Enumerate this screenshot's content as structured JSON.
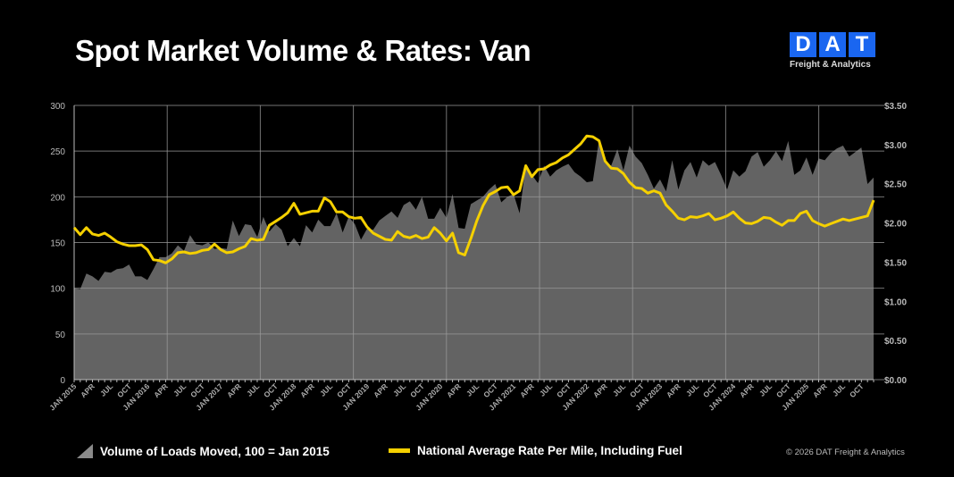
{
  "chart_data": {
    "type": "area+line",
    "title": "Spot Market Volume & Rates: Van",
    "x_labels": [
      "JAN 2015",
      "APR",
      "JUL",
      "OCT",
      "JAN 2016",
      "APR",
      "JUL",
      "OCT",
      "JAN 2017",
      "APR",
      "JUL",
      "OCT",
      "JAN 2018",
      "APR",
      "JUL",
      "OCT",
      "JAN 2019",
      "APR",
      "JUL",
      "OCT",
      "JAN 2020",
      "APR",
      "JUL",
      "OCT",
      "JAN 2021",
      "APR",
      "JUL",
      "OCT",
      "JAN 2022",
      "APR",
      "JUL",
      "OCT",
      "JAN 2023",
      "APR",
      "JUL",
      "OCT",
      "JAN 2024",
      "APR",
      "JUL",
      "OCT",
      "JAN 2025",
      "APR",
      "JUL",
      "OCT"
    ],
    "x_range": [
      "Jan 2015",
      "Dec 2025"
    ],
    "x_frequency": "monthly",
    "y_left": {
      "ylim": [
        0,
        300
      ],
      "ticks": [
        "0",
        "50",
        "100",
        "150",
        "200",
        "250",
        "300"
      ]
    },
    "y_right": {
      "ylim": [
        0,
        3.5
      ],
      "ticks": [
        "$0.00",
        "$0.50",
        "$1.00",
        "$1.50",
        "$2.00",
        "$2.50",
        "$3.00",
        "$3.50"
      ]
    },
    "grid": true,
    "legend_placement": "bottom",
    "series": [
      {
        "name": "Volume of Loads Moved, 100 = Jan 2015",
        "type": "area",
        "axis": "left",
        "color": "#636363",
        "values": [
          100,
          99,
          116,
          113,
          108,
          118,
          117,
          121,
          122,
          126,
          113,
          113,
          109,
          121,
          134,
          134,
          138,
          147,
          141,
          158,
          148,
          147,
          150,
          143,
          144,
          143,
          174,
          157,
          170,
          169,
          156,
          178,
          162,
          170,
          164,
          146,
          155,
          146,
          169,
          161,
          175,
          168,
          168,
          182,
          161,
          178,
          170,
          153,
          165,
          164,
          174,
          179,
          184,
          177,
          191,
          195,
          186,
          200,
          176,
          176,
          188,
          177,
          203,
          166,
          165,
          192,
          196,
          200,
          208,
          214,
          194,
          200,
          203,
          182,
          235,
          224,
          215,
          234,
          222,
          229,
          233,
          236,
          227,
          222,
          216,
          217,
          262,
          237,
          234,
          252,
          229,
          256,
          244,
          237,
          224,
          209,
          219,
          206,
          240,
          208,
          229,
          238,
          221,
          240,
          234,
          238,
          224,
          208,
          229,
          222,
          228,
          244,
          249,
          233,
          240,
          250,
          239,
          261,
          224,
          229,
          243,
          224,
          242,
          240,
          248,
          253,
          256,
          244,
          249,
          254,
          214,
          221
        ]
      },
      {
        "name": "National Average Rate Per Mile, Including Fuel",
        "type": "line",
        "axis": "right",
        "color": "#f5d000",
        "values": [
          1.94,
          1.85,
          1.94,
          1.86,
          1.84,
          1.87,
          1.82,
          1.76,
          1.73,
          1.71,
          1.71,
          1.72,
          1.66,
          1.53,
          1.52,
          1.49,
          1.54,
          1.62,
          1.63,
          1.61,
          1.62,
          1.65,
          1.66,
          1.73,
          1.66,
          1.62,
          1.63,
          1.67,
          1.7,
          1.8,
          1.78,
          1.79,
          1.97,
          2.02,
          2.07,
          2.13,
          2.25,
          2.11,
          2.13,
          2.15,
          2.15,
          2.32,
          2.27,
          2.14,
          2.14,
          2.08,
          2.06,
          2.07,
          1.95,
          1.87,
          1.83,
          1.79,
          1.78,
          1.89,
          1.83,
          1.81,
          1.84,
          1.8,
          1.82,
          1.94,
          1.87,
          1.77,
          1.87,
          1.62,
          1.59,
          1.8,
          2.03,
          2.22,
          2.36,
          2.4,
          2.45,
          2.46,
          2.36,
          2.41,
          2.73,
          2.59,
          2.68,
          2.69,
          2.74,
          2.77,
          2.83,
          2.87,
          2.94,
          3.01,
          3.11,
          3.1,
          3.05,
          2.79,
          2.7,
          2.69,
          2.63,
          2.52,
          2.45,
          2.44,
          2.38,
          2.41,
          2.38,
          2.23,
          2.15,
          2.06,
          2.04,
          2.08,
          2.07,
          2.09,
          2.12,
          2.04,
          2.06,
          2.09,
          2.14,
          2.06,
          2.0,
          1.99,
          2.02,
          2.07,
          2.06,
          2.01,
          1.97,
          2.03,
          2.03,
          2.12,
          2.15,
          2.03,
          1.99,
          1.96,
          1.99,
          2.02,
          2.05,
          2.03,
          2.05,
          2.07,
          2.09,
          2.29
        ]
      }
    ]
  },
  "logo": {
    "letters": [
      "D",
      "A",
      "T"
    ],
    "subtitle": "Freight & Analytics",
    "color": "#1a66f0"
  },
  "legend": {
    "volume": "Volume of Loads Moved, 100 = Jan 2015",
    "rate": "National Average Rate Per Mile, Including Fuel"
  },
  "copyright": "© 2026 DAT Freight & Analytics"
}
